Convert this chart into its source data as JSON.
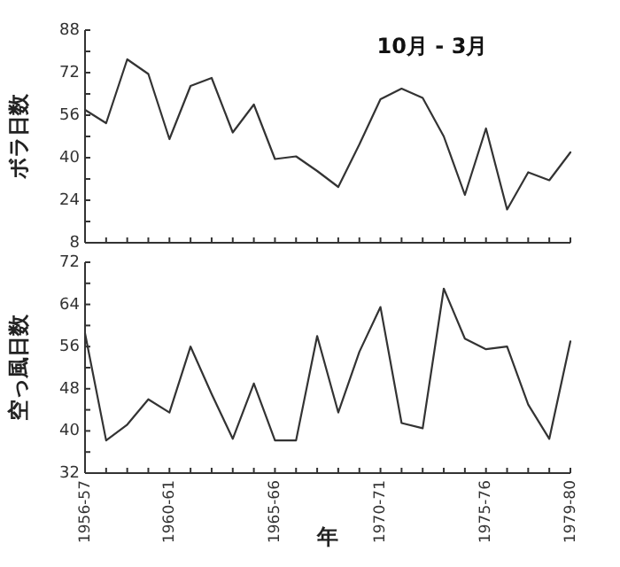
{
  "chart_data": [
    {
      "type": "line",
      "title": "10月 - 3月",
      "ylabel": "ボラ日数",
      "tick_labels": "y",
      "grid": false,
      "categories": [
        "1956-57",
        null,
        null,
        null,
        "1960-61",
        null,
        null,
        null,
        null,
        "1965-66",
        null,
        null,
        null,
        null,
        "1970-71",
        null,
        null,
        null,
        null,
        "1975-76",
        null,
        null,
        null,
        "1979-80"
      ],
      "series": [
        {
          "color": "#333333",
          "values": [
            58,
            53,
            77,
            71.5,
            47,
            67,
            70,
            49.5,
            60,
            39.5,
            40.5,
            35,
            29,
            45,
            62,
            66,
            62.5,
            48,
            26,
            51,
            20.5,
            34.5,
            31.5,
            42
          ]
        }
      ],
      "ylim": [
        8,
        88
      ],
      "yticks": [
        8,
        {
          "value": 16,
          "label": null
        },
        24,
        {
          "value": 32,
          "label": null
        },
        40,
        {
          "value": 48,
          "label": null
        },
        56,
        {
          "value": 64,
          "label": null
        },
        72,
        {
          "value": 80,
          "label": null
        },
        88
      ]
    },
    {
      "type": "line",
      "ylabel": "空っ風日数",
      "xlabel": "年",
      "grid": false,
      "categories": [
        "1956-57",
        null,
        null,
        null,
        "1960-61",
        null,
        null,
        null,
        null,
        "1965-66",
        null,
        null,
        null,
        null,
        "1970-71",
        null,
        null,
        null,
        null,
        "1975-76",
        null,
        null,
        null,
        "1979-80"
      ],
      "series": [
        {
          "color": "#333333",
          "values": [
            58.5,
            38.2,
            41.2,
            46,
            43.5,
            56,
            47,
            38.5,
            49,
            38.2,
            38.2,
            58,
            43.5,
            55,
            63.5,
            41.5,
            40.5,
            67,
            57.5,
            55.5,
            56,
            45,
            38.5,
            57
          ]
        }
      ],
      "ylim": [
        32,
        72
      ],
      "yticks": [
        32,
        {
          "value": 36,
          "label": null
        },
        40,
        {
          "value": 44,
          "label": null
        },
        48,
        {
          "value": 52,
          "label": null
        },
        56,
        {
          "value": 60,
          "label": null
        },
        64,
        {
          "value": 68,
          "label": null
        },
        72
      ]
    }
  ]
}
